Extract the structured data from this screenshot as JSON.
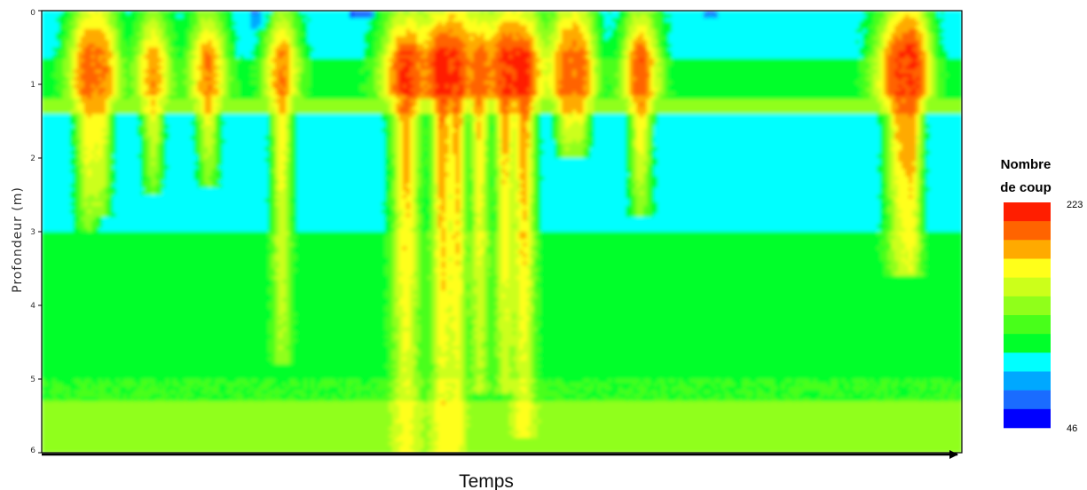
{
  "chart_data": {
    "type": "heatmap",
    "ylabel": "Profondeur (m)",
    "xlabel": "Temps",
    "ylim": [
      0,
      6
    ],
    "y_ticks": [
      "0",
      "1",
      "2",
      "3",
      "4",
      "5",
      "6"
    ],
    "x_range": [
      0,
      100
    ],
    "grid": false,
    "y_inverted": true,
    "legend": {
      "title_line1": "Nombre",
      "title_line2": "de coup",
      "max_label": "223",
      "min_label": "46",
      "range": [
        46,
        223
      ],
      "position": "right"
    },
    "colorscale": [
      "#0000ff",
      "#1a6cff",
      "#00a8ff",
      "#00ffff",
      "#00ff2a",
      "#48ff1a",
      "#90ff1a",
      "#ccff1a",
      "#ffff1a",
      "#ffaa00",
      "#ff6400",
      "#ff1e00"
    ],
    "background_levels": [
      {
        "depth_from": 0,
        "depth_to": 0.65,
        "value": 95
      },
      {
        "depth_from": 0.65,
        "depth_to": 1.2,
        "value": 110
      },
      {
        "depth_from": 1.2,
        "depth_to": 1.4,
        "value": 140
      },
      {
        "depth_from": 1.4,
        "depth_to": 3.0,
        "value": 95
      },
      {
        "depth_from": 3.0,
        "depth_to": 5.0,
        "value": 110
      },
      {
        "depth_from": 5.0,
        "depth_to": 5.3,
        "value": 120
      },
      {
        "depth_from": 5.3,
        "depth_to": 6.0,
        "value": 140
      }
    ],
    "low_patches": [
      {
        "time": 23.8,
        "depth_from": 0.0,
        "depth_to": 0.25,
        "width": 2.5,
        "value": 70
      },
      {
        "time": 34.8,
        "depth_from": 0.0,
        "depth_to": 0.12,
        "width": 3.0,
        "value": 60
      },
      {
        "time": 72.7,
        "depth_from": 0.0,
        "depth_to": 0.1,
        "width": 1.5,
        "value": 75
      }
    ],
    "events": [
      {
        "time": 5.0,
        "depth": 3.0,
        "peak": 200,
        "width": 1.6
      },
      {
        "time": 6.5,
        "depth": 2.8,
        "peak": 195,
        "width": 1.4
      },
      {
        "time": 12.1,
        "depth": 2.5,
        "peak": 190,
        "width": 1.4
      },
      {
        "time": 18.1,
        "depth": 2.4,
        "peak": 195,
        "width": 1.5
      },
      {
        "time": 26.1,
        "depth": 4.8,
        "peak": 195,
        "width": 1.4
      },
      {
        "time": 39.6,
        "depth": 6.0,
        "peak": 212,
        "width": 2.0
      },
      {
        "time": 43.5,
        "depth": 6.0,
        "peak": 218,
        "width": 1.5
      },
      {
        "time": 45.2,
        "depth": 6.0,
        "peak": 210,
        "width": 1.2
      },
      {
        "time": 47.6,
        "depth": 5.2,
        "peak": 202,
        "width": 1.3
      },
      {
        "time": 50.3,
        "depth": 5.2,
        "peak": 208,
        "width": 1.3
      },
      {
        "time": 52.4,
        "depth": 5.8,
        "peak": 216,
        "width": 1.6
      },
      {
        "time": 57.0,
        "depth": 2.0,
        "peak": 200,
        "width": 1.4
      },
      {
        "time": 58.5,
        "depth": 2.0,
        "peak": 198,
        "width": 1.3
      },
      {
        "time": 65.1,
        "depth": 2.8,
        "peak": 205,
        "width": 1.5
      },
      {
        "time": 93.2,
        "depth": 3.6,
        "peak": 205,
        "width": 2.0
      },
      {
        "time": 94.6,
        "depth": 3.6,
        "peak": 210,
        "width": 1.4
      }
    ]
  }
}
